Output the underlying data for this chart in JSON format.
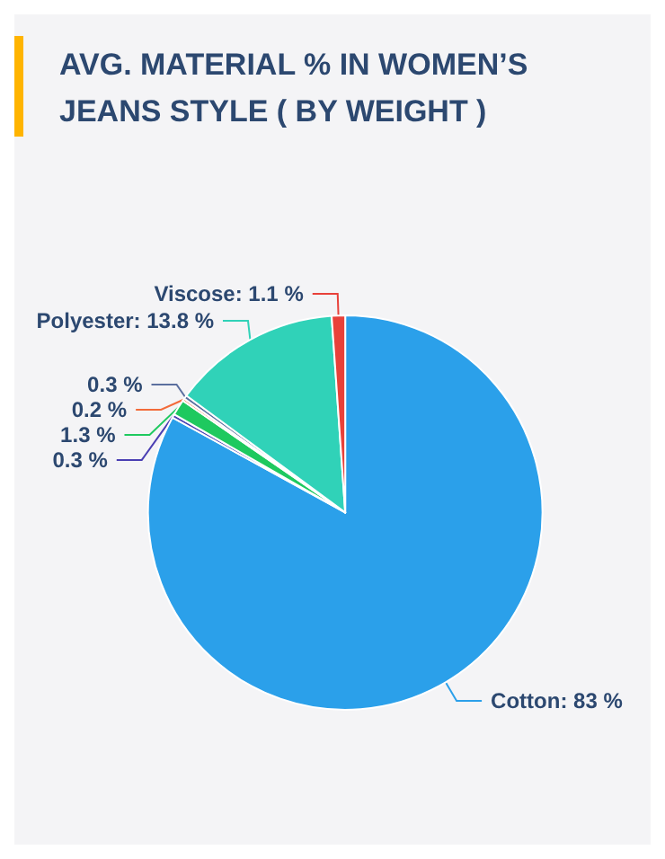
{
  "chart_data": {
    "type": "pie",
    "title": "AVG. MATERIAL % IN WOMEN’S JEANS STYLE ( BY WEIGHT )",
    "categories": [
      "Cotton",
      null,
      null,
      null,
      null,
      "Polyester",
      "Viscose"
    ],
    "values": [
      83.0,
      0.3,
      1.3,
      0.2,
      0.3,
      13.8,
      1.1
    ],
    "colors": [
      "#2ba0ea",
      "#4a3fb3",
      "#1ec95f",
      "#f26b3a",
      "#5b6f9f",
      "#30d2b8",
      "#e8413a"
    ],
    "value_labels": [
      "83 %",
      "0.3 %",
      "1.3 %",
      "0.2 %",
      "0.3 %",
      "13.8 %",
      "1.1 %"
    ],
    "legend": false
  }
}
